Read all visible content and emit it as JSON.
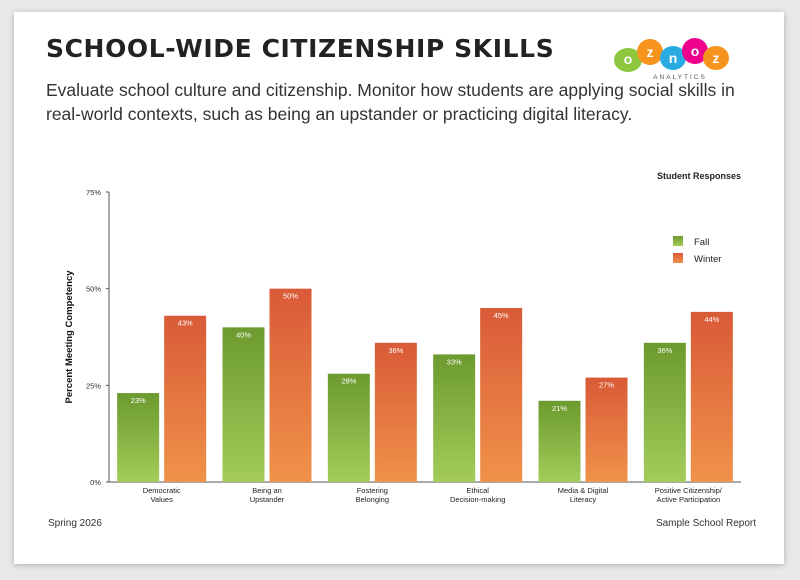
{
  "header": {
    "title": "SCHOOL-WIDE CITIZENSHIP SKILLS",
    "subtitle": "Evaluate school culture and citizenship. Monitor how students are applying social skills in real-world contexts, such as being an upstander or practicing digital literacy."
  },
  "logo": {
    "letters": [
      "o",
      "z",
      "n",
      "o",
      "z"
    ],
    "letter_colors": [
      "#8dc63f",
      "#f7941d",
      "#29abe2",
      "#ec008c",
      "#f7941d"
    ],
    "tagline": "ANALYTICS"
  },
  "footer": {
    "left": "Spring 2026",
    "right": "Sample School Report"
  },
  "chart_data": {
    "type": "bar",
    "title": "Student Responses",
    "ylabel": "Percent Meeting Competency",
    "xlabel": "",
    "ylim": [
      0,
      75
    ],
    "yticks": [
      0,
      25,
      50,
      75
    ],
    "ytick_labels": [
      "0%",
      "25%",
      "50%",
      "75%"
    ],
    "categories": [
      [
        "Democratic",
        "Values"
      ],
      [
        "Being an",
        "Upstander"
      ],
      [
        "Fostering",
        "Belonging"
      ],
      [
        "Ethical",
        "Decision-making"
      ],
      [
        "Media & Digital",
        "Literacy"
      ],
      [
        "Positive Citizenship/",
        "Active Participation"
      ]
    ],
    "series": [
      {
        "name": "Fall",
        "values": [
          23,
          40,
          28,
          33,
          21,
          36
        ],
        "color_top": "#6c9a2e",
        "color_bottom": "#a3cc5a"
      },
      {
        "name": "Winter",
        "values": [
          43,
          50,
          36,
          45,
          27,
          44
        ],
        "color_top": "#d95a37",
        "color_bottom": "#f0924a"
      }
    ],
    "value_label_suffix": "%",
    "legend_position": "top-right",
    "grid": false
  }
}
